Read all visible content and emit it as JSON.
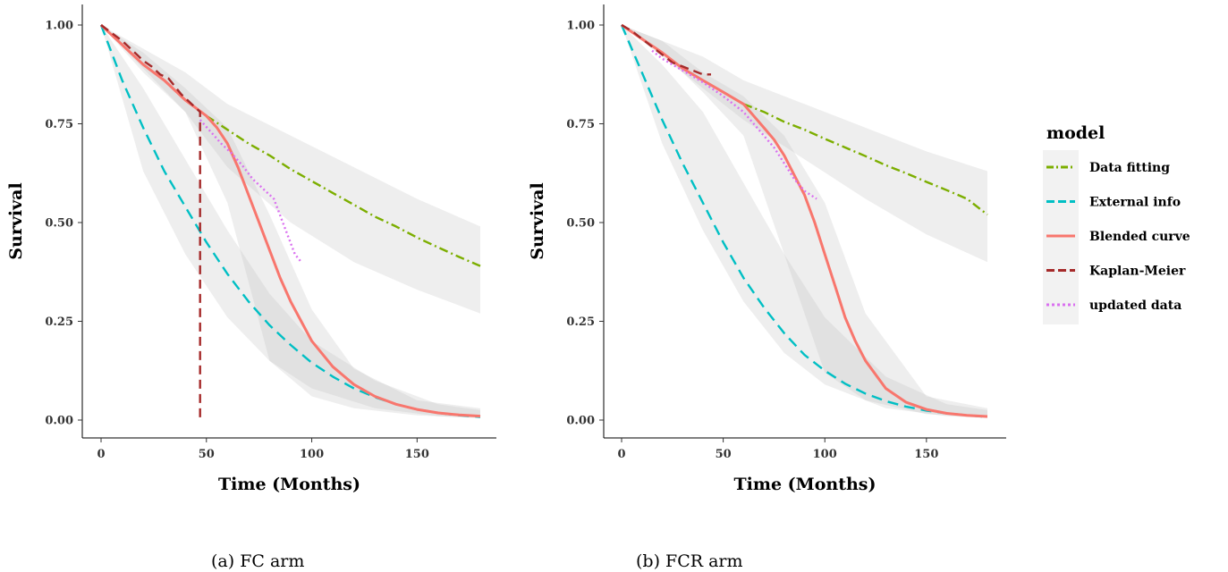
{
  "legend": {
    "title": "model",
    "items": [
      {
        "key": "fit",
        "label": "Data fitting",
        "color": "#7CAE00",
        "dash": "10,4,2,4"
      },
      {
        "key": "ext",
        "label": "External info",
        "color": "#00BFC4",
        "dash": "12,7"
      },
      {
        "key": "blend",
        "label": "Blended curve",
        "color": "#F8766D",
        "dash": ""
      },
      {
        "key": "km",
        "label": "Kaplan-Meier",
        "color": "#A52A2A",
        "dash": "10,6"
      },
      {
        "key": "upd",
        "label": "updated data",
        "color": "#DA70F0",
        "dash": "2,3"
      }
    ]
  },
  "captions": [
    "(a) FC arm",
    "(b) FCR arm"
  ],
  "chart_data": [
    {
      "type": "line",
      "caption": "(a) FC arm",
      "xlabel": "Time (Months)",
      "ylabel": "Survival",
      "xlim": [
        0,
        180
      ],
      "ylim": [
        0,
        1
      ],
      "xticks": [
        0,
        50,
        100,
        150
      ],
      "yticks": [
        0.0,
        0.25,
        0.5,
        0.75,
        1.0
      ],
      "yticklabels": [
        "0.00",
        "0.25",
        "0.50",
        "0.75",
        "1.00"
      ],
      "grid": false,
      "bands": [
        {
          "series": "ext",
          "x": [
            0,
            20,
            40,
            60,
            80,
            100,
            130,
            160,
            180
          ],
          "lower": [
            1.0,
            0.63,
            0.42,
            0.26,
            0.15,
            0.08,
            0.03,
            0.01,
            0.005
          ],
          "upper": [
            1.0,
            0.84,
            0.66,
            0.48,
            0.32,
            0.2,
            0.1,
            0.04,
            0.025
          ]
        },
        {
          "series": "fit",
          "x": [
            0,
            20,
            40,
            60,
            90,
            120,
            150,
            180
          ],
          "lower": [
            1.0,
            0.88,
            0.78,
            0.64,
            0.5,
            0.4,
            0.33,
            0.27
          ],
          "upper": [
            1.0,
            0.94,
            0.88,
            0.8,
            0.72,
            0.64,
            0.56,
            0.49
          ]
        },
        {
          "series": "blend",
          "x": [
            0,
            20,
            40,
            60,
            80,
            100,
            120,
            150,
            180
          ],
          "lower": [
            1.0,
            0.89,
            0.78,
            0.55,
            0.15,
            0.06,
            0.03,
            0.012,
            0.005
          ],
          "upper": [
            1.0,
            0.93,
            0.84,
            0.74,
            0.52,
            0.28,
            0.13,
            0.05,
            0.03
          ]
        }
      ],
      "series": [
        {
          "key": "ext",
          "name": "External info",
          "x": [
            0,
            10,
            20,
            30,
            40,
            50,
            60,
            70,
            80,
            90,
            100,
            110,
            120,
            130,
            140,
            150,
            160,
            170,
            180
          ],
          "y": [
            1.0,
            0.86,
            0.74,
            0.63,
            0.54,
            0.45,
            0.37,
            0.3,
            0.24,
            0.19,
            0.145,
            0.11,
            0.08,
            0.058,
            0.04,
            0.027,
            0.018,
            0.012,
            0.008
          ]
        },
        {
          "key": "fit",
          "name": "Data fitting",
          "x": [
            50,
            60,
            70,
            80,
            90,
            100,
            110,
            120,
            130,
            140,
            150,
            160,
            170,
            180
          ],
          "y": [
            0.77,
            0.735,
            0.7,
            0.67,
            0.635,
            0.605,
            0.575,
            0.545,
            0.515,
            0.49,
            0.462,
            0.437,
            0.413,
            0.39
          ]
        },
        {
          "key": "blend",
          "name": "Blended curve",
          "x": [
            0,
            10,
            20,
            30,
            40,
            45,
            50,
            55,
            60,
            65,
            70,
            75,
            80,
            85,
            90,
            95,
            100,
            110,
            120,
            130,
            140,
            150,
            160,
            170,
            180
          ],
          "y": [
            1.0,
            0.95,
            0.9,
            0.86,
            0.81,
            0.79,
            0.77,
            0.74,
            0.7,
            0.64,
            0.57,
            0.5,
            0.43,
            0.36,
            0.3,
            0.25,
            0.2,
            0.135,
            0.09,
            0.06,
            0.04,
            0.027,
            0.018,
            0.013,
            0.01
          ]
        },
        {
          "key": "km",
          "name": "Kaplan-Meier",
          "x": [
            0,
            5,
            10,
            13,
            16,
            20,
            24,
            28,
            32,
            35,
            38,
            41,
            44,
            47,
            47
          ],
          "y": [
            1.0,
            0.98,
            0.96,
            0.945,
            0.93,
            0.91,
            0.895,
            0.875,
            0.865,
            0.845,
            0.825,
            0.81,
            0.795,
            0.78,
            0.0
          ]
        },
        {
          "key": "upd",
          "name": "updated data",
          "x": [
            47,
            52,
            57,
            62,
            67,
            72,
            77,
            82,
            87,
            92,
            95
          ],
          "y": [
            0.76,
            0.73,
            0.7,
            0.675,
            0.645,
            0.61,
            0.585,
            0.56,
            0.49,
            0.42,
            0.4
          ]
        }
      ]
    },
    {
      "type": "line",
      "caption": "(b) FCR arm",
      "xlabel": "Time (Months)",
      "ylabel": "Survival",
      "xlim": [
        0,
        180
      ],
      "ylim": [
        0,
        1
      ],
      "xticks": [
        0,
        50,
        100,
        150
      ],
      "yticks": [
        0.0,
        0.25,
        0.5,
        0.75,
        1.0
      ],
      "yticklabels": [
        "0.00",
        "0.25",
        "0.50",
        "0.75",
        "1.00"
      ],
      "grid": false,
      "bands": [
        {
          "series": "ext",
          "x": [
            0,
            20,
            40,
            60,
            80,
            100,
            130,
            160,
            180
          ],
          "lower": [
            1.0,
            0.7,
            0.48,
            0.3,
            0.17,
            0.09,
            0.03,
            0.01,
            0.005
          ],
          "upper": [
            1.0,
            0.9,
            0.78,
            0.6,
            0.42,
            0.26,
            0.11,
            0.04,
            0.025
          ]
        },
        {
          "series": "fit",
          "x": [
            0,
            20,
            40,
            60,
            90,
            120,
            150,
            180
          ],
          "lower": [
            1.0,
            0.92,
            0.84,
            0.76,
            0.66,
            0.56,
            0.47,
            0.4
          ],
          "upper": [
            1.0,
            0.96,
            0.92,
            0.86,
            0.8,
            0.74,
            0.68,
            0.63
          ]
        },
        {
          "series": "blend",
          "x": [
            0,
            20,
            40,
            60,
            80,
            100,
            120,
            150,
            180
          ],
          "lower": [
            1.0,
            0.93,
            0.83,
            0.72,
            0.42,
            0.12,
            0.05,
            0.015,
            0.005
          ],
          "upper": [
            1.0,
            0.96,
            0.88,
            0.82,
            0.72,
            0.55,
            0.27,
            0.06,
            0.03
          ]
        }
      ],
      "series": [
        {
          "key": "ext",
          "name": "External info",
          "x": [
            0,
            10,
            20,
            30,
            40,
            50,
            60,
            70,
            80,
            90,
            100,
            110,
            120,
            130,
            140,
            150,
            160,
            170,
            180
          ],
          "y": [
            1.0,
            0.88,
            0.76,
            0.65,
            0.55,
            0.45,
            0.36,
            0.285,
            0.22,
            0.165,
            0.125,
            0.092,
            0.067,
            0.048,
            0.034,
            0.024,
            0.017,
            0.012,
            0.008
          ]
        },
        {
          "key": "fit",
          "name": "Data fitting",
          "x": [
            60,
            70,
            80,
            90,
            100,
            110,
            120,
            130,
            140,
            150,
            160,
            170,
            180
          ],
          "y": [
            0.8,
            0.78,
            0.755,
            0.735,
            0.712,
            0.69,
            0.668,
            0.645,
            0.625,
            0.603,
            0.582,
            0.56,
            0.52
          ]
        },
        {
          "key": "blend",
          "name": "Blended curve",
          "x": [
            0,
            10,
            20,
            30,
            40,
            50,
            60,
            65,
            70,
            75,
            80,
            85,
            90,
            95,
            100,
            105,
            110,
            115,
            120,
            130,
            140,
            150,
            160,
            170,
            180
          ],
          "y": [
            1.0,
            0.965,
            0.93,
            0.89,
            0.86,
            0.83,
            0.8,
            0.77,
            0.74,
            0.71,
            0.67,
            0.62,
            0.57,
            0.5,
            0.42,
            0.34,
            0.26,
            0.2,
            0.15,
            0.08,
            0.045,
            0.027,
            0.017,
            0.012,
            0.009
          ]
        },
        {
          "key": "km",
          "name": "Kaplan-Meier",
          "x": [
            0,
            5,
            10,
            15,
            20,
            25,
            30,
            35,
            40,
            44
          ],
          "y": [
            1.0,
            0.985,
            0.965,
            0.945,
            0.925,
            0.905,
            0.895,
            0.885,
            0.875,
            0.875
          ]
        },
        {
          "key": "upd",
          "name": "updated data",
          "x": [
            15,
            20,
            30,
            40,
            50,
            60,
            65,
            70,
            75,
            80,
            85,
            90,
            96
          ],
          "y": [
            0.935,
            0.915,
            0.885,
            0.855,
            0.82,
            0.78,
            0.75,
            0.72,
            0.69,
            0.65,
            0.61,
            0.58,
            0.56
          ]
        }
      ]
    }
  ]
}
